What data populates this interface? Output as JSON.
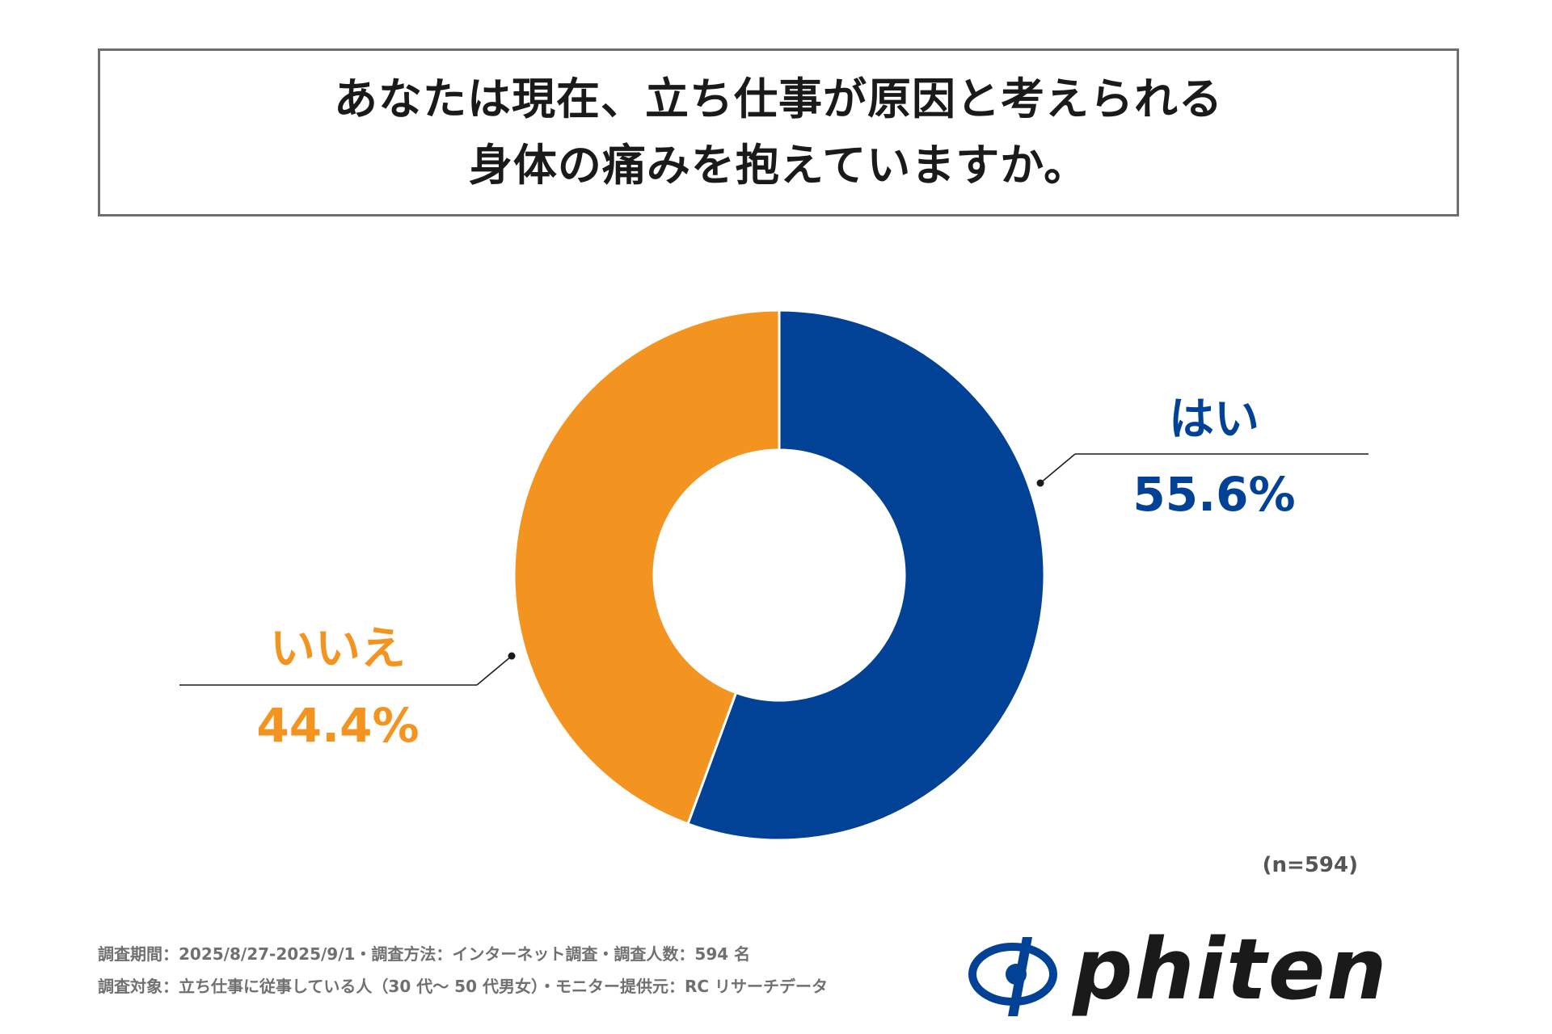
{
  "title": {
    "line1": "あなたは現在、立ち仕事が原因と考えられる",
    "line2": "身体の痛みを抱えていますか。"
  },
  "chart_data": {
    "type": "pie",
    "donut": true,
    "categories": [
      "はい",
      "いいえ"
    ],
    "values": [
      55.6,
      44.4
    ],
    "value_labels": [
      "55.6%",
      "44.4%"
    ],
    "colors": [
      "#024296",
      "#F49420"
    ]
  },
  "sample_size": "(n=594)",
  "footer": {
    "line1": "調査期間：2025/8/27-2025/9/1・調査方法：インターネット調査・調査人数：594 名",
    "line2": "調査対象：立ち仕事に従事している人（30 代〜 50 代男女）・モニター提供元：RC リサーチデータ"
  },
  "logo": {
    "text": "phiten",
    "mark_color": "#024296",
    "text_color": "#1a1a1a"
  }
}
